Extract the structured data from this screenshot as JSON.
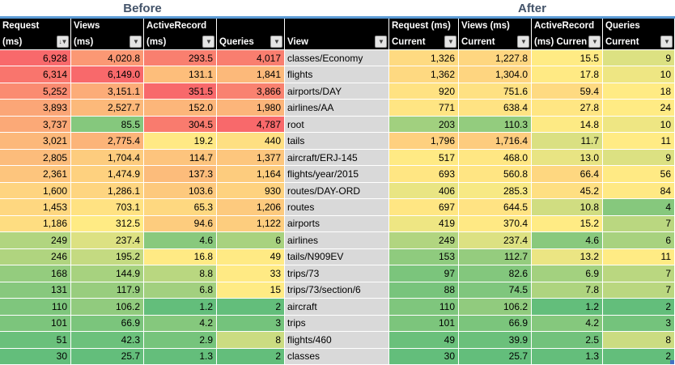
{
  "titles": {
    "before": "Before",
    "after": "After"
  },
  "icons": {
    "filter_dropdown": "▼",
    "sorted_filter": "↓▼"
  },
  "columns": {
    "before": [
      {
        "line1": "Request",
        "line2": "(ms)",
        "sorted": true
      },
      {
        "line1": "Views",
        "line2": "(ms)",
        "sorted": false
      },
      {
        "line1": "ActiveRecord",
        "line2": "(ms)",
        "sorted": false
      },
      {
        "line1": "",
        "line2": "Queries",
        "sorted": false
      }
    ],
    "view": {
      "line1": "",
      "line2": "View",
      "sorted": false
    },
    "after": [
      {
        "line1": "Request (ms)",
        "line2": "Current",
        "sorted": false
      },
      {
        "line1": "Views (ms)",
        "line2": "Current",
        "sorted": false
      },
      {
        "line1": "ActiveRecord",
        "line2": "(ms) Current",
        "sorted": false
      },
      {
        "line1": "Queries",
        "line2": "Current",
        "sorted": false
      }
    ]
  },
  "colors": {
    "scale_min_green": "#63BE7B",
    "scale_mid_yellow": "#FFEB84",
    "scale_max_red": "#F8696B",
    "header_bg": "#000000",
    "header_text": "#FFFFFF",
    "view_cell_bg": "#D9D9D9",
    "title_text": "#44546A",
    "title_underline": "#5B9BD5",
    "fill_handle": "#4472C4"
  },
  "rows": [
    {
      "view": "classes/Economy",
      "before": {
        "request": "6,928",
        "views": "4,020.8",
        "ar": "293.5",
        "queries": "4,017"
      },
      "after": {
        "request": "1,326",
        "views": "1,227.8",
        "ar": "15.5",
        "queries": "9"
      }
    },
    {
      "view": "flights",
      "before": {
        "request": "6,314",
        "views": "6,149.0",
        "ar": "131.1",
        "queries": "1,841"
      },
      "after": {
        "request": "1,362",
        "views": "1,304.0",
        "ar": "17.8",
        "queries": "10"
      }
    },
    {
      "view": "airports/DAY",
      "before": {
        "request": "5,252",
        "views": "3,151.1",
        "ar": "351.5",
        "queries": "3,866"
      },
      "after": {
        "request": "920",
        "views": "751.6",
        "ar": "59.4",
        "queries": "18"
      }
    },
    {
      "view": "airlines/AA",
      "before": {
        "request": "3,893",
        "views": "2,527.7",
        "ar": "152.0",
        "queries": "1,980"
      },
      "after": {
        "request": "771",
        "views": "638.4",
        "ar": "27.8",
        "queries": "24"
      }
    },
    {
      "view": "root",
      "before": {
        "request": "3,737",
        "views": "85.5",
        "ar": "304.5",
        "queries": "4,787"
      },
      "after": {
        "request": "203",
        "views": "110.3",
        "ar": "14.8",
        "queries": "10"
      }
    },
    {
      "view": "tails",
      "before": {
        "request": "3,021",
        "views": "2,775.4",
        "ar": "19.2",
        "queries": "440"
      },
      "after": {
        "request": "1,796",
        "views": "1,716.4",
        "ar": "11.7",
        "queries": "11"
      }
    },
    {
      "view": "aircraft/ERJ-145",
      "before": {
        "request": "2,805",
        "views": "1,704.4",
        "ar": "114.7",
        "queries": "1,377"
      },
      "after": {
        "request": "517",
        "views": "468.0",
        "ar": "13.0",
        "queries": "9"
      }
    },
    {
      "view": "flights/year/2015",
      "before": {
        "request": "2,361",
        "views": "1,474.9",
        "ar": "137.3",
        "queries": "1,164"
      },
      "after": {
        "request": "693",
        "views": "560.8",
        "ar": "66.4",
        "queries": "56"
      }
    },
    {
      "view": "routes/DAY-ORD",
      "before": {
        "request": "1,600",
        "views": "1,286.1",
        "ar": "103.6",
        "queries": "930"
      },
      "after": {
        "request": "406",
        "views": "285.3",
        "ar": "45.2",
        "queries": "84"
      }
    },
    {
      "view": "routes",
      "before": {
        "request": "1,453",
        "views": "703.1",
        "ar": "65.3",
        "queries": "1,206"
      },
      "after": {
        "request": "697",
        "views": "644.5",
        "ar": "10.8",
        "queries": "4"
      }
    },
    {
      "view": "airports",
      "before": {
        "request": "1,186",
        "views": "312.5",
        "ar": "94.6",
        "queries": "1,122"
      },
      "after": {
        "request": "419",
        "views": "370.4",
        "ar": "15.2",
        "queries": "7"
      }
    },
    {
      "view": "airlines",
      "before": {
        "request": "249",
        "views": "237.4",
        "ar": "4.6",
        "queries": "6"
      },
      "after": {
        "request": "249",
        "views": "237.4",
        "ar": "4.6",
        "queries": "6"
      }
    },
    {
      "view": "tails/N909EV",
      "before": {
        "request": "246",
        "views": "195.2",
        "ar": "16.8",
        "queries": "49"
      },
      "after": {
        "request": "153",
        "views": "112.7",
        "ar": "13.2",
        "queries": "11"
      }
    },
    {
      "view": "trips/73",
      "before": {
        "request": "168",
        "views": "144.9",
        "ar": "8.8",
        "queries": "33"
      },
      "after": {
        "request": "97",
        "views": "82.6",
        "ar": "6.9",
        "queries": "7"
      }
    },
    {
      "view": "trips/73/section/6",
      "before": {
        "request": "131",
        "views": "117.9",
        "ar": "6.8",
        "queries": "15"
      },
      "after": {
        "request": "88",
        "views": "74.5",
        "ar": "7.8",
        "queries": "7"
      }
    },
    {
      "view": "aircraft",
      "before": {
        "request": "110",
        "views": "106.2",
        "ar": "1.2",
        "queries": "2"
      },
      "after": {
        "request": "110",
        "views": "106.2",
        "ar": "1.2",
        "queries": "2"
      }
    },
    {
      "view": "trips",
      "before": {
        "request": "101",
        "views": "66.9",
        "ar": "4.2",
        "queries": "3"
      },
      "after": {
        "request": "101",
        "views": "66.9",
        "ar": "4.2",
        "queries": "3"
      }
    },
    {
      "view": "flights/460",
      "before": {
        "request": "51",
        "views": "42.3",
        "ar": "2.9",
        "queries": "8"
      },
      "after": {
        "request": "49",
        "views": "39.9",
        "ar": "2.5",
        "queries": "8"
      }
    },
    {
      "view": "classes",
      "before": {
        "request": "30",
        "views": "25.7",
        "ar": "1.3",
        "queries": "2"
      },
      "after": {
        "request": "30",
        "views": "25.7",
        "ar": "1.3",
        "queries": "2"
      }
    }
  ]
}
